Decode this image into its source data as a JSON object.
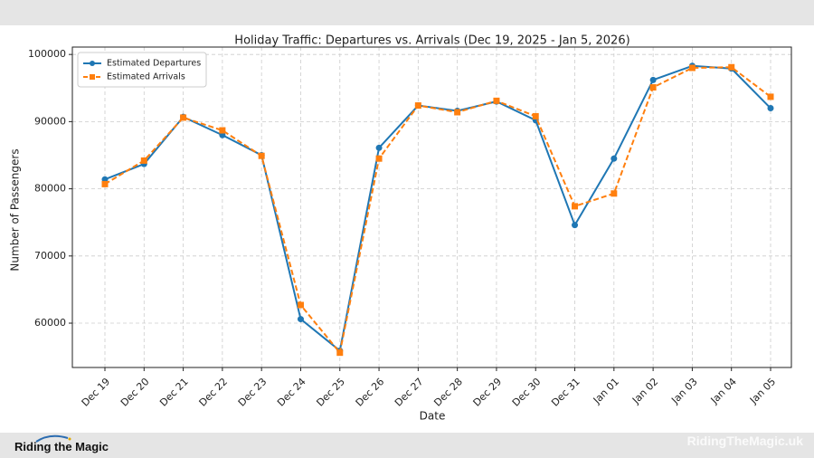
{
  "chart_data": {
    "type": "line",
    "title": "Holiday Traffic: Departures vs. Arrivals (Dec 19, 2025 - Jan 5, 2026)",
    "x_label": "Date",
    "y_label": "Number of Passengers",
    "categories": [
      "Dec 19",
      "Dec 20",
      "Dec 21",
      "Dec 22",
      "Dec 23",
      "Dec 24",
      "Dec 25",
      "Dec 26",
      "Dec 27",
      "Dec 28",
      "Dec 29",
      "Dec 30",
      "Dec 31",
      "Jan 01",
      "Jan 02",
      "Jan 03",
      "Jan 04",
      "Jan 05"
    ],
    "series": [
      {
        "name": "Estimated Departures",
        "color": "#1f77b4",
        "marker": "circle",
        "dashed": false,
        "values": [
          81400,
          83700,
          90700,
          88000,
          85000,
          60600,
          55900,
          86100,
          92400,
          91600,
          93000,
          90200,
          74600,
          84500,
          96200,
          98300,
          97900,
          92000
        ]
      },
      {
        "name": "Estimated Arrivals",
        "color": "#ff7f0e",
        "marker": "square",
        "dashed": true,
        "values": [
          80700,
          84200,
          90600,
          88700,
          84900,
          62700,
          55600,
          84500,
          92400,
          91400,
          93100,
          90800,
          77400,
          79300,
          95100,
          98000,
          98100,
          93700
        ]
      }
    ],
    "ylim": [
      53400,
      101100
    ],
    "yticks": [
      60000,
      70000,
      80000,
      90000,
      100000
    ],
    "grid": true,
    "legend": "upper left"
  },
  "footer": {
    "brand": "Riding the Magic",
    "site": "RidingTheMagic.uk"
  }
}
